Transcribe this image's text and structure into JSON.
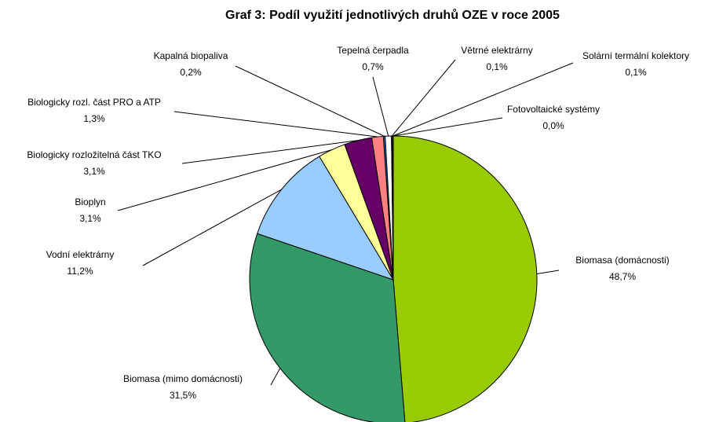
{
  "chart_data": {
    "type": "pie",
    "title": "Graf 3: Podíl využití jednotlivých druhů OZE v roce 2005",
    "categories": [
      "Biomasa (domácnosti)",
      "Biomasa (mimo domácnosti)",
      "Vodní elektrárny",
      "Bioplyn",
      "Biologicky rozložitelná část TKO",
      "Biologicky rozl. část PRO a ATP",
      "Kapalná biopaliva",
      "Tepelná čerpadla",
      "Větrné elektrárny",
      "Solární termální kolektory",
      "Fotovoltaické systémy"
    ],
    "values": [
      48.7,
      31.5,
      11.2,
      3.1,
      3.1,
      1.3,
      0.2,
      0.7,
      0.1,
      0.1,
      0.0
    ],
    "value_labels": [
      "48,7%",
      "31,5%",
      "11,2%",
      "3,1%",
      "3,1%",
      "1,3%",
      "0,2%",
      "0,7%",
      "0,1%",
      "0,1%",
      "0,0%"
    ],
    "colors": [
      "#99cc00",
      "#339966",
      "#99ccff",
      "#ffff99",
      "#660066",
      "#ff8080",
      "#0066cc",
      "#ffffff",
      "#000080",
      "#ccccff",
      "#ff0000"
    ]
  }
}
